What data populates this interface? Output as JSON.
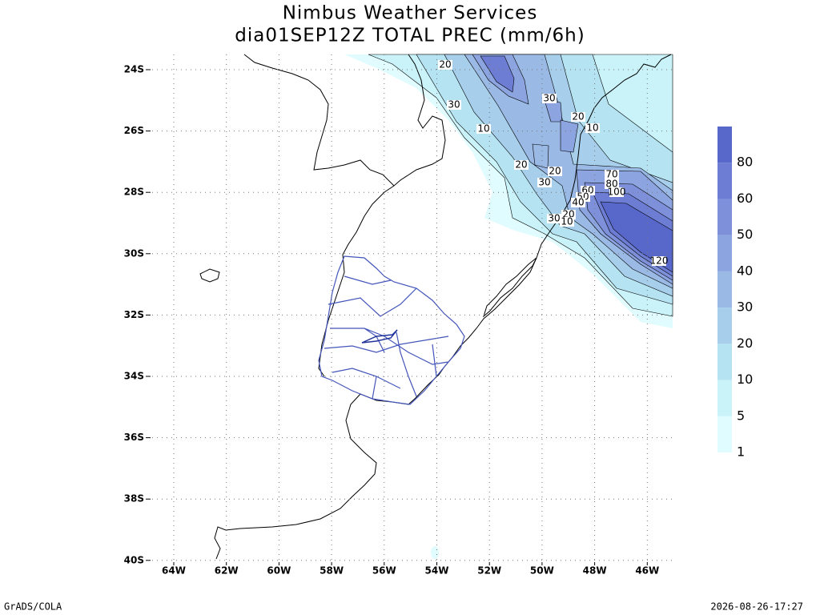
{
  "header": {
    "title": "Nimbus Weather Services",
    "subtitle": "dia01SEP12Z TOTAL PREC (mm/6h)"
  },
  "map": {
    "lat_ticks": [
      {
        "value": -24,
        "label": "24S"
      },
      {
        "value": -26,
        "label": "26S"
      },
      {
        "value": -28,
        "label": "28S"
      },
      {
        "value": -30,
        "label": "30S"
      },
      {
        "value": -32,
        "label": "32S"
      },
      {
        "value": -34,
        "label": "34S"
      },
      {
        "value": -36,
        "label": "36S"
      },
      {
        "value": -38,
        "label": "38S"
      },
      {
        "value": -40,
        "label": "40S"
      }
    ],
    "lon_ticks": [
      {
        "value": -64,
        "label": "64W"
      },
      {
        "value": -62,
        "label": "62W"
      },
      {
        "value": -60,
        "label": "60W"
      },
      {
        "value": -58,
        "label": "58W"
      },
      {
        "value": -56,
        "label": "56W"
      },
      {
        "value": -54,
        "label": "54W"
      },
      {
        "value": -52,
        "label": "52W"
      },
      {
        "value": -50,
        "label": "50W"
      },
      {
        "value": -48,
        "label": "48W"
      },
      {
        "value": -46,
        "label": "46W"
      }
    ],
    "contour_labels": [
      20,
      30,
      10,
      30,
      20,
      10,
      20,
      20,
      30,
      70,
      80,
      60,
      50,
      40,
      100,
      20,
      30,
      10,
      120
    ]
  },
  "colorbar": {
    "levels": [
      1,
      5,
      10,
      20,
      30,
      40,
      50,
      60,
      80
    ],
    "colors": [
      "#e1fcfe",
      "#c9f3f9",
      "#b5e3f1",
      "#a7cfeb",
      "#9ab9e5",
      "#8ca4df",
      "#7e90d9",
      "#6c7dd3",
      "#5867ca"
    ]
  },
  "footer": {
    "left": "GrADS/COLA",
    "right": "2026-08-26-17:27"
  }
}
